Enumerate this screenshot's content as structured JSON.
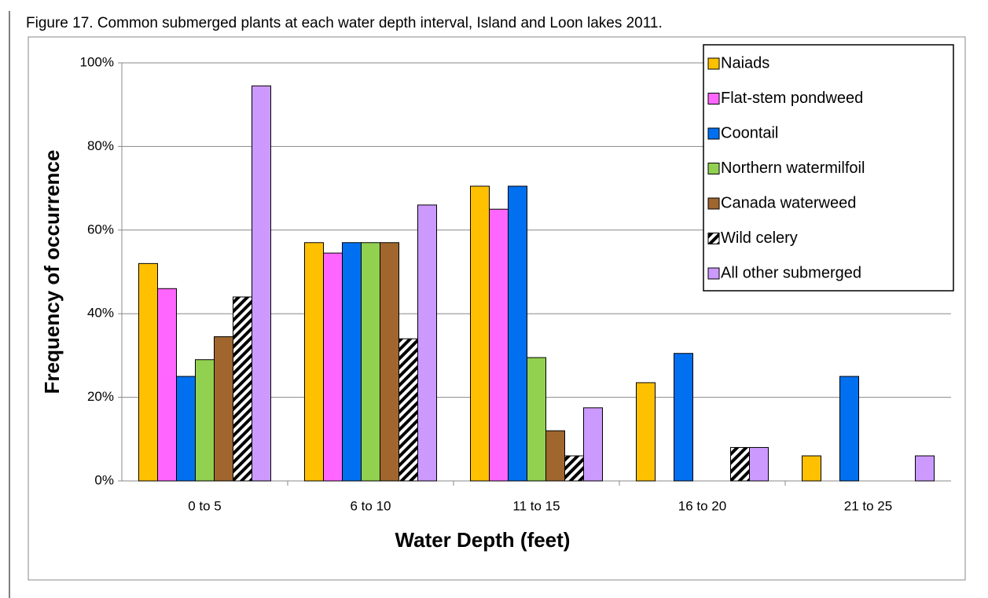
{
  "chart_data": {
    "type": "bar",
    "title": "Figure 17.  Common submerged plants at each water depth interval, Island and Loon lakes 2011.",
    "x_label": "Water Depth (feet)",
    "y_label": "Frequency of occurrence",
    "categories": [
      "0 to 5",
      "6 to 10",
      "11 to 15",
      "16 to 20",
      "21 to 25"
    ],
    "series": [
      {
        "name": "Naiads",
        "color": "#FFC000",
        "values": [
          52,
          57,
          70.5,
          23.5,
          6
        ]
      },
      {
        "name": "Flat-stem pondweed",
        "color": "#FF66FF",
        "values": [
          46,
          54.5,
          65,
          0,
          0
        ]
      },
      {
        "name": "Coontail",
        "color": "#0070F0",
        "values": [
          25,
          57,
          70.5,
          30.5,
          25
        ]
      },
      {
        "name": "Northern watermilfoil",
        "color": "#92D050",
        "values": [
          29,
          57,
          29.5,
          0,
          0
        ]
      },
      {
        "name": "Canada waterweed",
        "color": "#A0662E",
        "values": [
          34.5,
          57,
          12,
          0,
          0
        ]
      },
      {
        "name": "Wild celery",
        "color": "#000000",
        "hatch": true,
        "values": [
          44,
          34,
          6,
          8,
          0
        ]
      },
      {
        "name": "All other submerged",
        "color": "#CC99FF",
        "values": [
          94.5,
          66,
          17.5,
          8,
          6
        ]
      }
    ],
    "ylim": [
      0,
      100
    ],
    "yticks": [
      {
        "value": 0,
        "label": "0%"
      },
      {
        "value": 20,
        "label": "20%"
      },
      {
        "value": 40,
        "label": "40%"
      },
      {
        "value": 60,
        "label": "60%"
      },
      {
        "value": 80,
        "label": "80%"
      },
      {
        "value": 100,
        "label": "100%"
      }
    ],
    "grid": true,
    "legend": "top-right"
  }
}
